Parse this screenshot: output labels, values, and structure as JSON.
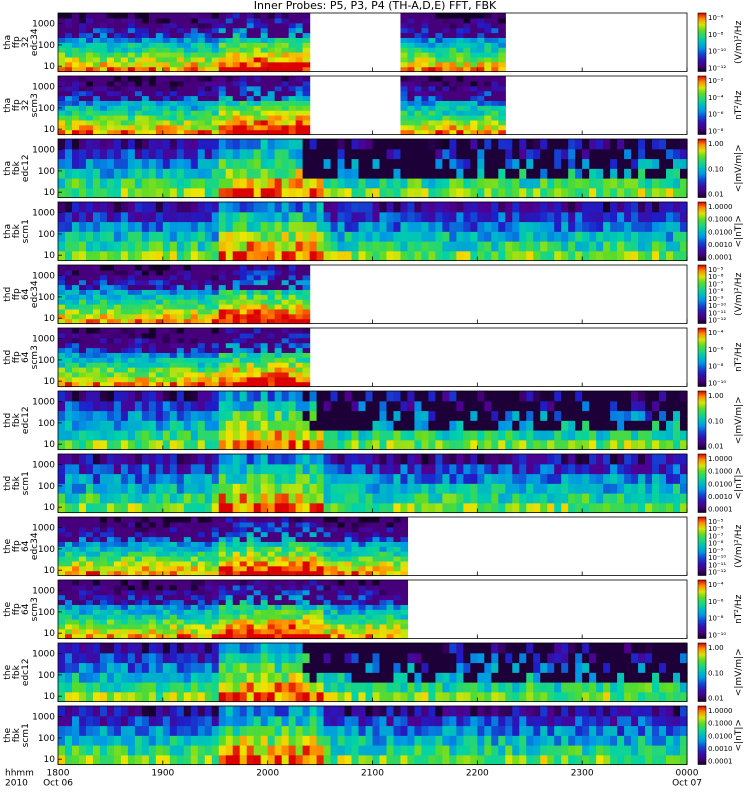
{
  "title": "Inner Probes: P5, P3, P4 (TH-A,D,E) FFT, FBK",
  "chart_data": {
    "type": "heatmap",
    "x_ticks": [
      "1800",
      "1900",
      "2000",
      "2100",
      "2200",
      "2300",
      "0000"
    ],
    "x_tick_dates": [
      "Oct 06",
      "",
      "",
      "",
      "",
      "",
      "Oct 07"
    ],
    "corner_labels": [
      "hhmm",
      "2010"
    ],
    "xlim_hours": [
      18,
      24
    ],
    "panels": [
      {
        "label": [
          "tha",
          "ffp",
          "32",
          "edc34"
        ],
        "yscale": "log",
        "y_ticks": [
          "10",
          "100",
          "1000"
        ],
        "cbar_label": "(V/m)²/Hz",
        "cbar_ticks": [
          "10⁻⁶",
          "10⁻⁸",
          "10⁻¹⁰",
          "10⁻¹²"
        ],
        "coverage": [
          [
            18.0,
            20.4
          ],
          [
            21.25,
            22.25
          ]
        ]
      },
      {
        "label": [
          "tha",
          "ffp",
          "32",
          "scm3"
        ],
        "yscale": "log",
        "y_ticks": [
          "10",
          "100",
          "1000"
        ],
        "cbar_label": "nT²/Hz",
        "cbar_ticks": [
          "10⁻²",
          "10⁻⁴",
          "10⁻⁶",
          "10⁻⁸"
        ],
        "coverage": [
          [
            18.0,
            20.4
          ],
          [
            21.25,
            22.25
          ]
        ]
      },
      {
        "label": [
          "tha",
          "fbk",
          "edc12"
        ],
        "yscale": "log",
        "y_ticks": [
          "10",
          "100",
          "1000"
        ],
        "cbar_label": "<|mV/m|>",
        "cbar_ticks": [
          "1.00",
          "0.10",
          "0.01"
        ],
        "coverage": [
          [
            18.0,
            24.0
          ]
        ]
      },
      {
        "label": [
          "tha",
          "fbk",
          "scm1"
        ],
        "yscale": "log",
        "y_ticks": [
          "10",
          "100",
          "1000"
        ],
        "cbar_label": "<|nT|>",
        "cbar_ticks": [
          "1.0000",
          "0.1000",
          "0.0100",
          "0.0010",
          "0.0001"
        ],
        "coverage": [
          [
            18.0,
            24.0
          ]
        ]
      },
      {
        "label": [
          "thd",
          "ffp",
          "64",
          "edc34"
        ],
        "yscale": "log",
        "y_ticks": [
          "10",
          "100",
          "1000"
        ],
        "cbar_label": "(V/m)²/Hz",
        "cbar_ticks": [
          "10⁻⁵",
          "10⁻⁶",
          "10⁻⁷",
          "10⁻⁸",
          "10⁻⁹",
          "10⁻¹⁰",
          "10⁻¹¹",
          "10⁻¹²"
        ],
        "coverage": [
          [
            18.0,
            20.4
          ]
        ]
      },
      {
        "label": [
          "thd",
          "ffp",
          "64",
          "scm3"
        ],
        "yscale": "log",
        "y_ticks": [
          "10",
          "100",
          "1000"
        ],
        "cbar_label": "nT²/Hz",
        "cbar_ticks": [
          "10⁻⁴",
          "10⁻⁶",
          "10⁻⁸",
          "10⁻¹⁰"
        ],
        "coverage": [
          [
            18.0,
            20.4
          ]
        ]
      },
      {
        "label": [
          "thd",
          "fbk",
          "edc12"
        ],
        "yscale": "log",
        "y_ticks": [
          "10",
          "100",
          "1000"
        ],
        "cbar_label": "<|mV/m|>",
        "cbar_ticks": [
          "1.00",
          "0.10",
          "0.01"
        ],
        "coverage": [
          [
            18.0,
            24.0
          ]
        ]
      },
      {
        "label": [
          "thd",
          "fbk",
          "scm1"
        ],
        "yscale": "log",
        "y_ticks": [
          "10",
          "100",
          "1000"
        ],
        "cbar_label": "<|nT|>",
        "cbar_ticks": [
          "1.0000",
          "0.1000",
          "0.0100",
          "0.0010",
          "0.0001"
        ],
        "coverage": [
          [
            18.0,
            24.0
          ]
        ]
      },
      {
        "label": [
          "the",
          "ffp",
          "64",
          "edc34"
        ],
        "yscale": "log",
        "y_ticks": [
          "10",
          "100",
          "1000"
        ],
        "cbar_label": "(V/m)²/Hz",
        "cbar_ticks": [
          "10⁻⁵",
          "10⁻⁶",
          "10⁻⁷",
          "10⁻⁸",
          "10⁻⁹",
          "10⁻¹⁰",
          "10⁻¹¹",
          "10⁻¹²"
        ],
        "coverage": [
          [
            18.0,
            21.3
          ]
        ]
      },
      {
        "label": [
          "the",
          "ffp",
          "64",
          "scm3"
        ],
        "yscale": "log",
        "y_ticks": [
          "10",
          "100",
          "1000"
        ],
        "cbar_label": "nT²/Hz",
        "cbar_ticks": [
          "10⁻⁴",
          "10⁻⁶",
          "10⁻⁸",
          "10⁻¹⁰"
        ],
        "coverage": [
          [
            18.0,
            21.3
          ]
        ]
      },
      {
        "label": [
          "the",
          "fbk",
          "edc12"
        ],
        "yscale": "log",
        "y_ticks": [
          "10",
          "100",
          "1000"
        ],
        "cbar_label": "<|mV/m|>",
        "cbar_ticks": [
          "1.00",
          "0.10",
          "0.01"
        ],
        "coverage": [
          [
            18.0,
            24.0
          ]
        ]
      },
      {
        "label": [
          "the",
          "fbk",
          "scm1"
        ],
        "yscale": "log",
        "y_ticks": [
          "10",
          "100",
          "1000"
        ],
        "cbar_label": "<|nT|>",
        "cbar_ticks": [
          "1.0000",
          "0.1000",
          "0.0100",
          "0.0010",
          "0.0001"
        ],
        "coverage": [
          [
            18.0,
            24.0
          ]
        ]
      }
    ]
  }
}
